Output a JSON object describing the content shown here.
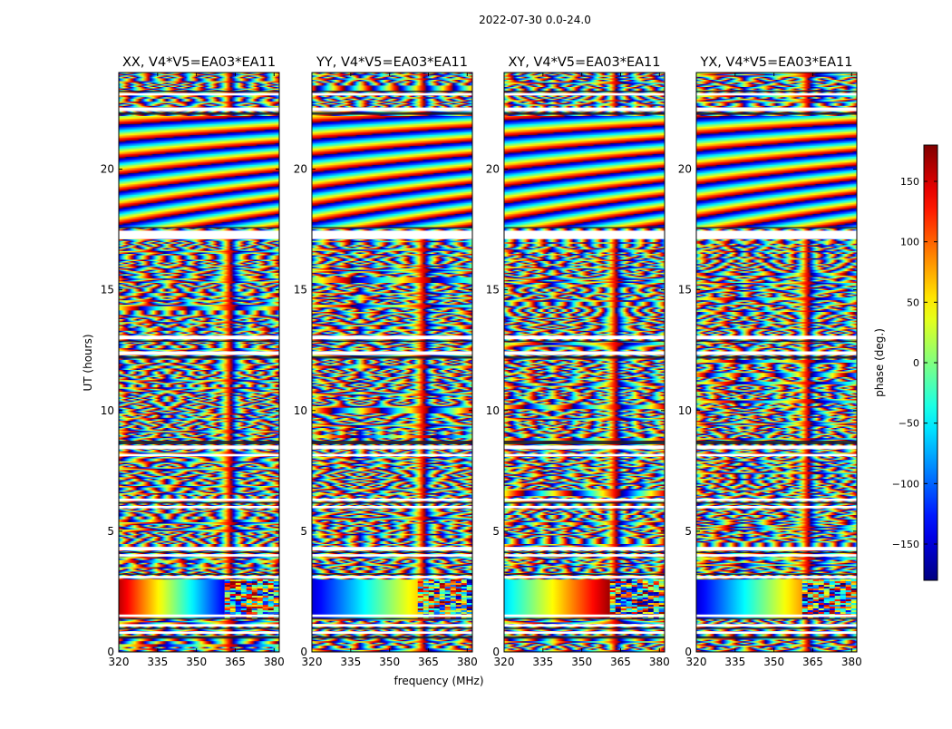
{
  "chart_data": {
    "type": "heatmap",
    "suptitle": "2022-07-30 0.0-24.0",
    "xlabel": "frequency (MHz)",
    "ylabel": "UT (hours)",
    "xlim": [
      320,
      382
    ],
    "ylim": [
      0,
      24
    ],
    "x_ticks": [
      320,
      335,
      350,
      365,
      380
    ],
    "y_ticks": [
      0,
      5,
      10,
      15,
      20
    ],
    "colorbar": {
      "label": "phase (deg.)",
      "range": [
        -180,
        180
      ],
      "ticks": [
        150,
        100,
        50,
        0,
        -50,
        -100,
        -150
      ],
      "tick_labels": [
        "150",
        "100",
        "50",
        "0",
        "−50",
        "−100",
        "−150"
      ],
      "colormap": "jet"
    },
    "panels": [
      {
        "title": "XX, V4*V5=EA03*EA11",
        "description_values": {
          "fringe_region_hours": [
            17.6,
            22.2
          ],
          "smooth_gradient_region_hours": [
            1.4,
            3.0
          ],
          "gradient_phase_start_deg": 160,
          "gradient_phase_end_deg": -140
        }
      },
      {
        "title": "YY, V4*V5=EA03*EA11",
        "description_values": {
          "fringe_region_hours": [
            17.6,
            22.2
          ],
          "smooth_gradient_region_hours": [
            1.4,
            3.0
          ],
          "gradient_phase_start_deg": -150,
          "gradient_phase_end_deg": 60
        }
      },
      {
        "title": "XY, V4*V5=EA03*EA11",
        "description_values": {
          "fringe_region_hours": [
            17.6,
            22.2
          ],
          "smooth_gradient_region_hours": [
            1.4,
            3.0
          ],
          "gradient_phase_start_deg": -60,
          "gradient_phase_end_deg": 170
        }
      },
      {
        "title": "YX, V4*V5=EA03*EA11",
        "description_values": {
          "fringe_region_hours": [
            17.6,
            22.2
          ],
          "smooth_gradient_region_hours": [
            1.4,
            3.0
          ],
          "gradient_phase_start_deg": -150,
          "gradient_phase_end_deg": 80
        }
      }
    ],
    "blank_hour_gaps": [
      [
        0.75,
        0.85
      ],
      [
        1.05,
        1.15
      ],
      [
        1.45,
        1.55
      ],
      [
        3.05,
        3.15
      ],
      [
        3.95,
        4.05
      ],
      [
        4.2,
        4.35
      ],
      [
        5.95,
        6.05
      ],
      [
        6.25,
        6.35
      ],
      [
        8.1,
        8.2
      ],
      [
        8.4,
        8.55
      ],
      [
        12.3,
        12.45
      ],
      [
        12.95,
        13.1
      ],
      [
        17.1,
        17.45
      ],
      [
        22.4,
        22.55
      ],
      [
        23.05,
        23.15
      ]
    ],
    "dark_hour_bands": [
      [
        0.55,
        0.65
      ],
      [
        0.95,
        1.0
      ],
      [
        1.35,
        1.4
      ],
      [
        3.2,
        3.25
      ],
      [
        4.1,
        4.15
      ],
      [
        6.15,
        6.2
      ],
      [
        8.6,
        8.75
      ],
      [
        12.15,
        12.25
      ],
      [
        12.85,
        12.9
      ],
      [
        17.55,
        17.6
      ],
      [
        22.25,
        22.35
      ],
      [
        23.2,
        23.25
      ]
    ]
  }
}
